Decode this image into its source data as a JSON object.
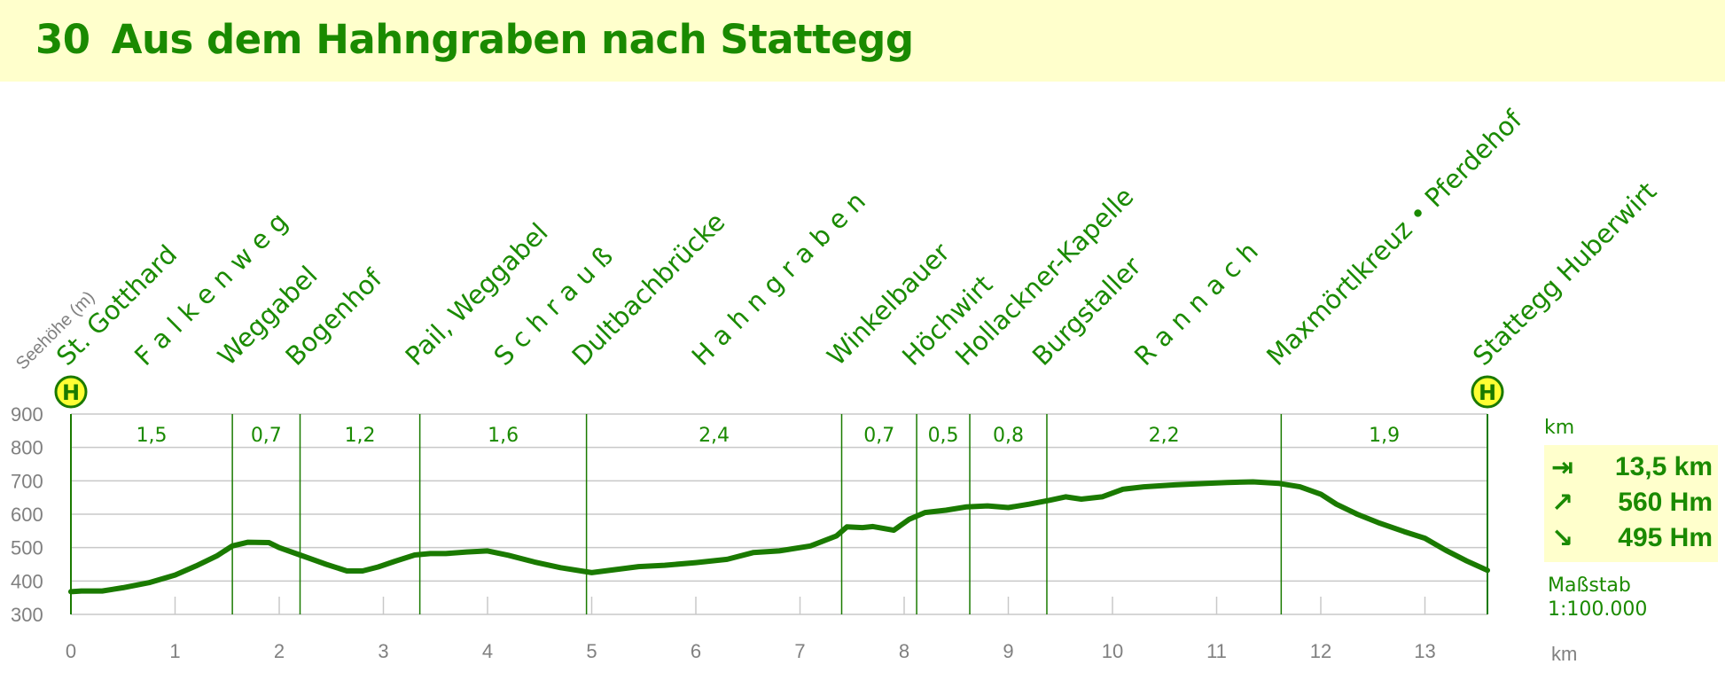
{
  "title": {
    "number": "30",
    "text": "Aus dem Hahngraben nach Stattegg"
  },
  "chart_data": {
    "type": "area",
    "ylabel": "Seehöhe (m)",
    "xlabel": "km",
    "xlim": [
      0,
      13.6
    ],
    "ylim": [
      300,
      900
    ],
    "x_ticks": [
      "0",
      "1",
      "2",
      "3",
      "4",
      "5",
      "6",
      "7",
      "8",
      "9",
      "10",
      "11",
      "12",
      "13"
    ],
    "y_ticks": [
      "900",
      "800",
      "700",
      "600",
      "500",
      "400",
      "300"
    ],
    "grid": true,
    "series": [
      {
        "values": [
          [
            0,
            368
          ],
          [
            0.1,
            370
          ],
          [
            0.3,
            370
          ],
          [
            0.5,
            380
          ],
          [
            0.75,
            395
          ],
          [
            1.0,
            418
          ],
          [
            1.2,
            445
          ],
          [
            1.4,
            475
          ],
          [
            1.55,
            505
          ],
          [
            1.7,
            516
          ],
          [
            1.9,
            515
          ],
          [
            2.0,
            500
          ],
          [
            2.2,
            478
          ],
          [
            2.45,
            450
          ],
          [
            2.65,
            430
          ],
          [
            2.8,
            430
          ],
          [
            2.95,
            442
          ],
          [
            3.1,
            458
          ],
          [
            3.3,
            478
          ],
          [
            3.45,
            482
          ],
          [
            3.6,
            482
          ],
          [
            3.8,
            487
          ],
          [
            4.0,
            490
          ],
          [
            4.2,
            477
          ],
          [
            4.45,
            457
          ],
          [
            4.7,
            440
          ],
          [
            5.0,
            425
          ],
          [
            5.2,
            433
          ],
          [
            5.45,
            443
          ],
          [
            5.7,
            447
          ],
          [
            6.0,
            455
          ],
          [
            6.3,
            465
          ],
          [
            6.55,
            485
          ],
          [
            6.8,
            490
          ],
          [
            7.1,
            505
          ],
          [
            7.35,
            535
          ],
          [
            7.45,
            562
          ],
          [
            7.6,
            560
          ],
          [
            7.7,
            563
          ],
          [
            7.9,
            552
          ],
          [
            8.05,
            585
          ],
          [
            8.2,
            605
          ],
          [
            8.4,
            612
          ],
          [
            8.6,
            622
          ],
          [
            8.8,
            625
          ],
          [
            9.0,
            620
          ],
          [
            9.2,
            630
          ],
          [
            9.4,
            642
          ],
          [
            9.55,
            652
          ],
          [
            9.7,
            645
          ],
          [
            9.9,
            652
          ],
          [
            10.1,
            675
          ],
          [
            10.3,
            682
          ],
          [
            10.6,
            688
          ],
          [
            10.9,
            692
          ],
          [
            11.1,
            695
          ],
          [
            11.35,
            697
          ],
          [
            11.6,
            692
          ],
          [
            11.8,
            682
          ],
          [
            12.0,
            660
          ],
          [
            12.15,
            630
          ],
          [
            12.35,
            600
          ],
          [
            12.55,
            575
          ],
          [
            12.8,
            548
          ],
          [
            13.0,
            528
          ],
          [
            13.2,
            492
          ],
          [
            13.4,
            460
          ],
          [
            13.6,
            432
          ]
        ]
      }
    ],
    "segments": [
      {
        "x": [
          0,
          1.55
        ],
        "km": "1,5"
      },
      {
        "x": [
          1.55,
          2.2
        ],
        "km": "0,7"
      },
      {
        "x": [
          2.2,
          3.35
        ],
        "km": "1,2"
      },
      {
        "x": [
          3.35,
          4.95
        ],
        "km": "1,6"
      },
      {
        "x": [
          4.95,
          7.4
        ],
        "km": "2,4"
      },
      {
        "x": [
          7.4,
          8.12
        ],
        "km": "0,7"
      },
      {
        "x": [
          8.12,
          8.63
        ],
        "km": "0,5"
      },
      {
        "x": [
          8.63,
          9.37
        ],
        "km": "0,8"
      },
      {
        "x": [
          9.37,
          11.62
        ],
        "km": "2,2"
      },
      {
        "x": [
          11.62,
          13.6
        ],
        "km": "1,9"
      }
    ],
    "places": [
      {
        "name": "St. Gotthard",
        "x": 0.0
      },
      {
        "name": "F a l k e n w e g",
        "x": 0.75
      },
      {
        "name": "Weggabel",
        "x": 1.55
      },
      {
        "name": "Bogenhof",
        "x": 2.2
      },
      {
        "name": "Pail, Weggabel",
        "x": 3.35
      },
      {
        "name": "S c h r a u ß",
        "x": 4.2
      },
      {
        "name": "Dultbachbrücke",
        "x": 4.95
      },
      {
        "name": "H a h n g r a b e n",
        "x": 6.1
      },
      {
        "name": "Winkelbauer",
        "x": 7.4
      },
      {
        "name": "Höchwirt",
        "x": 8.12
      },
      {
        "name": "Hollackner-Kapelle",
        "x": 8.63
      },
      {
        "name": "Burgstaller",
        "x": 9.37
      },
      {
        "name": "R a n n a c h",
        "x": 10.35
      },
      {
        "name": "Maxmörtlkreuz • Pferdehof",
        "x": 11.62
      },
      {
        "name": "Stattegg Huberwirt",
        "x": 13.6
      }
    ],
    "stops": [
      {
        "label": "H",
        "x": 0.0
      },
      {
        "label": "H",
        "x": 13.6
      }
    ],
    "colors": {
      "line": "#1a7a00",
      "text": "#1a8a00",
      "grid": "#c8c8c8",
      "axis_text": "#808080",
      "stop_fill": "#ffff33"
    }
  },
  "stats": {
    "unit_label": "km",
    "distance": {
      "icon": "arrow-right-bar-icon",
      "value": "13,5 km"
    },
    "ascent": {
      "icon": "arrow-up-right-icon",
      "value": "560 Hm"
    },
    "descent": {
      "icon": "arrow-down-right-icon",
      "value": "495 Hm"
    },
    "scale_label": "Maßstab",
    "scale_value": "1:100.000"
  }
}
